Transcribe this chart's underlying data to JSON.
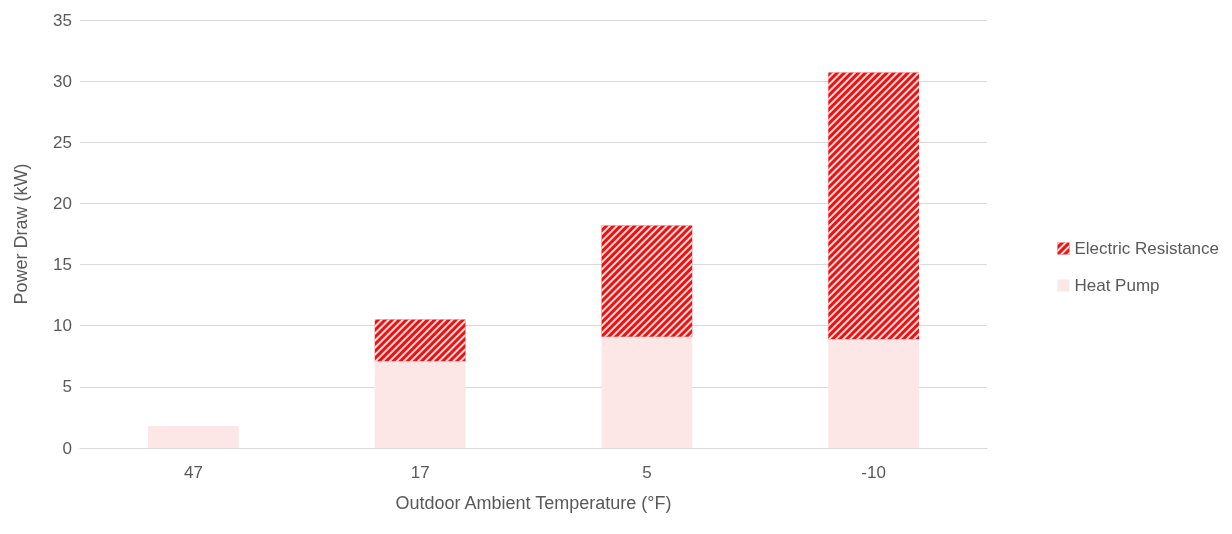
{
  "chart_data": {
    "type": "bar",
    "xlabel": "Outdoor Ambient Temperature (°F)",
    "ylabel": "Power Draw (kW)",
    "categories": [
      "47",
      "17",
      "5",
      "-10"
    ],
    "stacked": true,
    "series": [
      {
        "name": "Heat Pump",
        "color": "#fde6e6",
        "values": [
          1.8,
          7.1,
          9.1,
          8.9
        ]
      },
      {
        "name": "Electric Resistance",
        "color": "#ee1111",
        "values": [
          0,
          3.4,
          9.1,
          21.8
        ]
      }
    ],
    "ylim": [
      0,
      35
    ],
    "yticks": [
      0,
      5,
      10,
      15,
      20,
      25,
      30,
      35
    ],
    "grid": "y",
    "legend": "right"
  }
}
